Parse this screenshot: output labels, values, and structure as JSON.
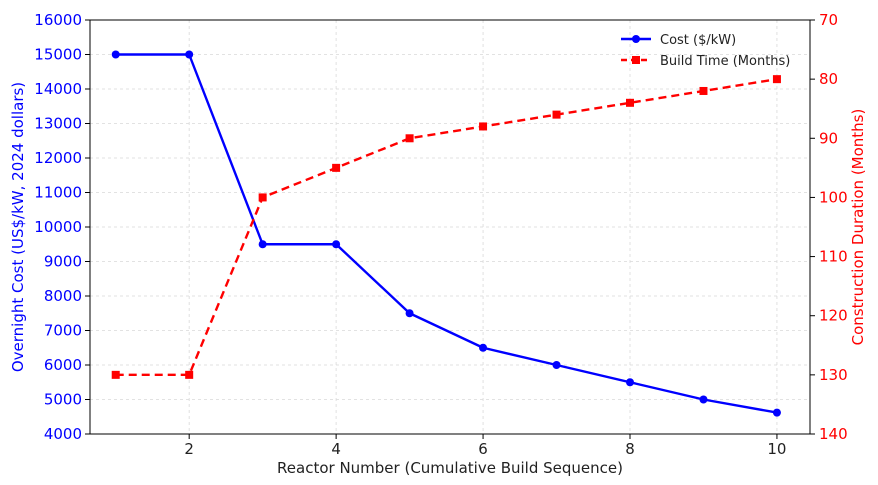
{
  "chart_data": {
    "type": "line",
    "title": "",
    "xlabel": "Reactor Number (Cumulative Build Sequence)",
    "ylabel_left": "Overnight Cost (US$/kW, 2024 dollars)",
    "ylabel_right": "Construction Duration (Months)",
    "x_ticks": [
      2,
      4,
      6,
      8,
      10
    ],
    "xlim": [
      0.65,
      10.45
    ],
    "ylim_left": [
      4000,
      16000
    ],
    "y_ticks_left": [
      4000,
      5000,
      6000,
      7000,
      8000,
      9000,
      10000,
      11000,
      12000,
      13000,
      14000,
      15000,
      16000
    ],
    "ylim_right": [
      70,
      140
    ],
    "right_axis_inverted": true,
    "y_ticks_right": [
      70,
      80,
      90,
      100,
      110,
      120,
      130,
      140
    ],
    "grid": true,
    "legend_position": "top-right",
    "x": [
      1,
      2,
      3,
      4,
      5,
      6,
      7,
      8,
      9,
      10
    ],
    "series": [
      {
        "name": "Cost ($/kW)",
        "axis": "left",
        "color": "#0000ff",
        "marker": "circle",
        "line_style": "solid",
        "values": [
          15000,
          15000,
          9500,
          9500,
          7500,
          6500,
          6000,
          5500,
          5000,
          4620
        ]
      },
      {
        "name": "Build Time (Months)",
        "axis": "right",
        "color": "#ff0000",
        "marker": "square",
        "line_style": "dashed",
        "values": [
          130,
          130,
          100,
          95,
          90,
          88,
          86,
          84,
          82,
          80
        ]
      }
    ]
  }
}
